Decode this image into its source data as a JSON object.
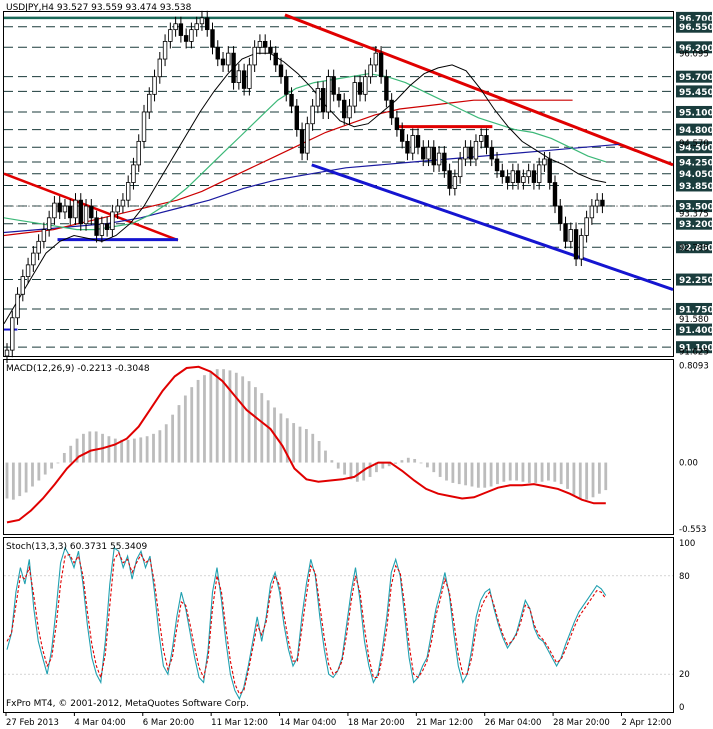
{
  "chart_data": {
    "type": "candlestick",
    "symbol_header": "USDJPY,H4  93.527 93.559 93.474 93.538",
    "price_axis": {
      "range": [
        90.95,
        96.8
      ],
      "tick_labels": [
        "96.095",
        "94.570",
        "93.375",
        "92.795",
        "91.580",
        "91.025"
      ],
      "level_labels": [
        "96.700",
        "96.550",
        "96.200",
        "95.700",
        "95.450",
        "95.100",
        "94.800",
        "94.500",
        "94.250",
        "94.050",
        "93.850",
        "93.500",
        "93.200",
        "92.800",
        "92.250",
        "91.750",
        "91.400",
        "91.100"
      ],
      "current_price": "93.500"
    },
    "price_series": [
      91.05,
      91.6,
      92.0,
      92.3,
      92.5,
      92.7,
      92.9,
      93.1,
      93.3,
      93.55,
      93.4,
      93.5,
      93.3,
      93.6,
      93.2,
      93.5,
      93.3,
      93.0,
      93.2,
      93.1,
      93.4,
      93.5,
      93.6,
      93.9,
      94.2,
      94.6,
      95.1,
      95.4,
      95.7,
      96.0,
      96.3,
      96.5,
      96.6,
      96.4,
      96.3,
      96.5,
      96.6,
      96.7,
      96.5,
      96.2,
      96.0,
      95.9,
      96.1,
      95.6,
      95.8,
      95.5,
      95.9,
      96.2,
      96.3,
      96.2,
      96.1,
      95.9,
      95.7,
      95.4,
      95.2,
      94.8,
      94.4,
      94.9,
      95.2,
      95.5,
      95.1,
      95.7,
      95.4,
      95.3,
      95.0,
      95.2,
      95.6,
      95.4,
      95.7,
      95.9,
      96.1,
      95.7,
      95.3,
      95.0,
      94.8,
      94.6,
      94.4,
      94.7,
      94.5,
      94.3,
      94.5,
      94.2,
      94.4,
      94.1,
      93.8,
      94.0,
      94.3,
      94.5,
      94.3,
      94.6,
      94.7,
      94.5,
      94.3,
      94.1,
      94.0,
      93.9,
      94.1,
      93.9,
      94.0,
      94.1,
      93.9,
      94.2,
      94.3,
      93.9,
      93.5,
      93.2,
      92.9,
      93.1,
      92.6,
      93.0,
      93.3,
      93.5,
      93.6,
      93.5
    ],
    "ma_fast": [
      91.5,
      91.9,
      92.3,
      92.7,
      92.9,
      93.0,
      92.95,
      92.9,
      93.0,
      93.2,
      93.5,
      93.9,
      94.3,
      94.7,
      95.1,
      95.45,
      95.75,
      96.0,
      96.1,
      96.1,
      95.95,
      95.75,
      95.5,
      95.2,
      94.95,
      94.85,
      94.9,
      95.1,
      95.3,
      95.55,
      95.75,
      95.85,
      95.9,
      95.8,
      95.5,
      95.15,
      94.85,
      94.6,
      94.45,
      94.3,
      94.2,
      94.05,
      93.95,
      93.9
    ],
    "ma_medium": [
      93.3,
      93.25,
      93.2,
      93.15,
      93.1,
      93.1,
      93.15,
      93.2,
      93.35,
      93.55,
      93.8,
      94.1,
      94.4,
      94.7,
      95.0,
      95.3,
      95.5,
      95.6,
      95.65,
      95.7,
      95.75,
      95.7,
      95.6,
      95.45,
      95.3,
      95.15,
      95.0,
      94.9,
      94.8,
      94.75,
      94.65,
      94.5,
      94.35,
      94.25
    ],
    "ma_slow": [
      93.0,
      93.05,
      93.1,
      93.2,
      93.3,
      93.4,
      93.5,
      93.6,
      93.75,
      93.95,
      94.15,
      94.35,
      94.55,
      94.75,
      94.9,
      95.05,
      95.15,
      95.2,
      95.25,
      95.3,
      95.3,
      95.3,
      95.3,
      95.3
    ],
    "ma_slowest": [
      93.05,
      93.1,
      93.15,
      93.2,
      93.3,
      93.45,
      93.6,
      93.8,
      93.95,
      94.05,
      94.15,
      94.2,
      94.25,
      94.3,
      94.35,
      94.4,
      94.45,
      94.5,
      94.55
    ],
    "macd": {
      "header": "MACD(12,26,9) -0.2213 -0.3048",
      "tick_labels": [
        "0.8093",
        "0.00",
        "-0.553"
      ],
      "range": [
        -0.58,
        0.84
      ],
      "histogram": [
        -0.3,
        -0.31,
        -0.28,
        -0.25,
        -0.2,
        -0.15,
        -0.1,
        -0.05,
        0.0,
        0.08,
        0.14,
        0.2,
        0.24,
        0.26,
        0.26,
        0.24,
        0.22,
        0.2,
        0.19,
        0.19,
        0.2,
        0.21,
        0.22,
        0.24,
        0.27,
        0.32,
        0.4,
        0.48,
        0.56,
        0.63,
        0.69,
        0.73,
        0.76,
        0.78,
        0.78,
        0.77,
        0.75,
        0.72,
        0.68,
        0.63,
        0.58,
        0.52,
        0.46,
        0.41,
        0.37,
        0.33,
        0.3,
        0.28,
        0.24,
        0.18,
        0.1,
        0.02,
        -0.05,
        -0.1,
        -0.14,
        -0.16,
        -0.15,
        -0.12,
        -0.08,
        -0.05,
        -0.03,
        -0.01,
        0.02,
        0.04,
        0.03,
        0.0,
        -0.04,
        -0.08,
        -0.12,
        -0.15,
        -0.17,
        -0.18,
        -0.19,
        -0.2,
        -0.21,
        -0.21,
        -0.2,
        -0.18,
        -0.16,
        -0.15,
        -0.15,
        -0.16,
        -0.17,
        -0.17,
        -0.16,
        -0.15,
        -0.16,
        -0.18,
        -0.22,
        -0.27,
        -0.3,
        -0.31,
        -0.29,
        -0.26,
        -0.23
      ],
      "signal": [
        -0.5,
        -0.48,
        -0.4,
        -0.3,
        -0.18,
        -0.05,
        0.05,
        0.1,
        0.12,
        0.15,
        0.2,
        0.3,
        0.45,
        0.6,
        0.72,
        0.79,
        0.8,
        0.76,
        0.68,
        0.56,
        0.44,
        0.36,
        0.28,
        0.14,
        -0.05,
        -0.14,
        -0.16,
        -0.15,
        -0.14,
        -0.12,
        -0.05,
        0.0,
        0.0,
        -0.07,
        -0.15,
        -0.22,
        -0.26,
        -0.28,
        -0.3,
        -0.29,
        -0.25,
        -0.21,
        -0.19,
        -0.19,
        -0.18,
        -0.2,
        -0.22,
        -0.26,
        -0.31,
        -0.34,
        -0.34
      ]
    },
    "stoch": {
      "header": "Stoch(13,3,3) 60.3731 55.3409",
      "tick_labels": [
        "100",
        "80",
        "20",
        "0"
      ],
      "range": [
        0,
        100
      ],
      "main": [
        35,
        45,
        70,
        85,
        75,
        90,
        60,
        40,
        30,
        20,
        35,
        60,
        88,
        97,
        92,
        85,
        95,
        75,
        50,
        30,
        20,
        15,
        40,
        75,
        97,
        95,
        85,
        92,
        78,
        90,
        95,
        85,
        92,
        70,
        45,
        25,
        20,
        35,
        55,
        70,
        60,
        45,
        30,
        18,
        15,
        35,
        70,
        85,
        65,
        40,
        20,
        10,
        5,
        12,
        25,
        40,
        55,
        40,
        55,
        75,
        82,
        70,
        50,
        35,
        25,
        30,
        55,
        75,
        90,
        80,
        55,
        35,
        20,
        18,
        22,
        30,
        50,
        70,
        85,
        65,
        40,
        25,
        15,
        20,
        35,
        55,
        82,
        90,
        80,
        55,
        30,
        15,
        18,
        25,
        30,
        45,
        60,
        70,
        82,
        68,
        45,
        25,
        15,
        20,
        35,
        55,
        65,
        70,
        72,
        60,
        50,
        42,
        36,
        40,
        45,
        55,
        65,
        60,
        48,
        42,
        40,
        35,
        30,
        25,
        30,
        38,
        45,
        52,
        58,
        62,
        66,
        70,
        74,
        72,
        68
      ],
      "signal": [
        40,
        45,
        62,
        80,
        78,
        85,
        68,
        48,
        35,
        25,
        30,
        50,
        75,
        92,
        93,
        88,
        92,
        80,
        58,
        38,
        25,
        18,
        32,
        62,
        90,
        94,
        88,
        90,
        82,
        88,
        93,
        88,
        90,
        76,
        55,
        35,
        23,
        30,
        48,
        64,
        62,
        50,
        36,
        24,
        18,
        30,
        60,
        80,
        70,
        48,
        28,
        14,
        8,
        10,
        22,
        36,
        50,
        44,
        52,
        70,
        80,
        74,
        56,
        40,
        28,
        28,
        48,
        68,
        86,
        82,
        62,
        42,
        26,
        20,
        22,
        28,
        44,
        64,
        80,
        70,
        48,
        30,
        18,
        18,
        30,
        48,
        74,
        86,
        82,
        62,
        38,
        20,
        18,
        22,
        28,
        40,
        56,
        66,
        78,
        70,
        52,
        32,
        20,
        20,
        30,
        48,
        60,
        66,
        70,
        62,
        52,
        44,
        38,
        40,
        44,
        52,
        62,
        60,
        50,
        44,
        41,
        37,
        32,
        27,
        29,
        35,
        42,
        49,
        55,
        59,
        63,
        67,
        71,
        70,
        66
      ]
    },
    "x_tick_labels": [
      "27 Feb 2013",
      "4 Mar 04:00",
      "6 Mar 20:00",
      "11 Mar 12:00",
      "14 Mar 04:00",
      "18 Mar 20:00",
      "21 Mar 12:00",
      "26 Mar 04:00",
      "28 Mar 20:00",
      "2 Apr 12:00"
    ],
    "copyright": "FxPro MT4, © 2001-2012, MetaQuotes Software Corp.",
    "colors": {
      "candle": "#000000",
      "ma_fast": "#000000",
      "ma_medium": "#3cb878",
      "ma_slow": "#cc0000",
      "ma_slowest": "#1a1aa0",
      "trend_red": "#e00000",
      "trend_blue": "#1515d0",
      "macd_hist": "#bcbcbc",
      "macd_signal": "#e00000",
      "stoch_main": "#20a0b0",
      "stoch_signal": "#e00000",
      "level_dash": "#1a3a3a",
      "label_bg": "#1a3d3d"
    }
  }
}
